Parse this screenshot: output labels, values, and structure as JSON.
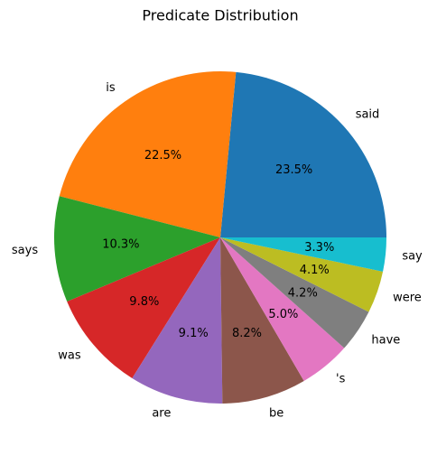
{
  "chart_data": {
    "type": "pie",
    "title": "Predicate Distribution",
    "categories": [
      "said",
      "is",
      "says",
      "was",
      "are",
      "be",
      "'s",
      "have",
      "were",
      "say"
    ],
    "values": [
      23.5,
      22.5,
      10.3,
      9.8,
      9.1,
      8.2,
      5.0,
      4.2,
      4.1,
      3.3
    ],
    "value_labels": [
      "23.5%",
      "22.5%",
      "10.3%",
      "9.8%",
      "9.1%",
      "8.2%",
      "5.0%",
      "4.2%",
      "4.1%",
      "3.3%"
    ],
    "colors": [
      "#1f77b4",
      "#ff7f0e",
      "#2ca02c",
      "#d62728",
      "#9467bd",
      "#8c564b",
      "#e377c2",
      "#7f7f7f",
      "#bcbd22",
      "#17becf"
    ]
  }
}
